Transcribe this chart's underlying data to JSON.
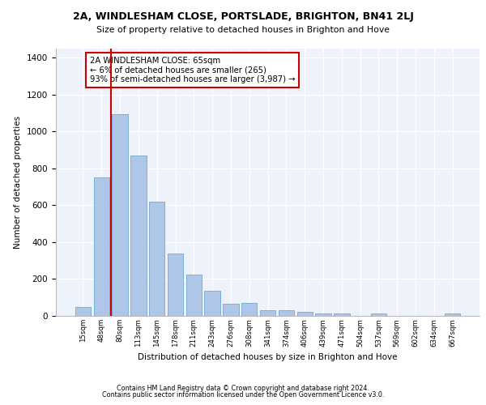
{
  "title1": "2A, WINDLESHAM CLOSE, PORTSLADE, BRIGHTON, BN41 2LJ",
  "title2": "Size of property relative to detached houses in Brighton and Hove",
  "xlabel": "Distribution of detached houses by size in Brighton and Hove",
  "ylabel": "Number of detached properties",
  "categories": [
    "15sqm",
    "48sqm",
    "80sqm",
    "113sqm",
    "145sqm",
    "178sqm",
    "211sqm",
    "243sqm",
    "276sqm",
    "308sqm",
    "341sqm",
    "374sqm",
    "406sqm",
    "439sqm",
    "471sqm",
    "504sqm",
    "537sqm",
    "569sqm",
    "602sqm",
    "634sqm",
    "667sqm"
  ],
  "values": [
    50,
    750,
    1095,
    870,
    620,
    340,
    222,
    135,
    65,
    70,
    30,
    32,
    22,
    15,
    15,
    0,
    12,
    0,
    0,
    0,
    12
  ],
  "bar_color": "#aec6e8",
  "bar_edge_color": "#6aaad4",
  "vline_x": 1.5,
  "vline_color": "#cc0000",
  "annotation_text": "2A WINDLESHAM CLOSE: 65sqm\n← 6% of detached houses are smaller (265)\n93% of semi-detached houses are larger (3,987) →",
  "annotation_box_color": "#ffffff",
  "annotation_box_edge": "#cc0000",
  "ylim": [
    0,
    1450
  ],
  "yticks": [
    0,
    200,
    400,
    600,
    800,
    1000,
    1200,
    1400
  ],
  "footer1": "Contains HM Land Registry data © Crown copyright and database right 2024.",
  "footer2": "Contains public sector information licensed under the Open Government Licence v3.0.",
  "plot_bg_color": "#eef2fb"
}
